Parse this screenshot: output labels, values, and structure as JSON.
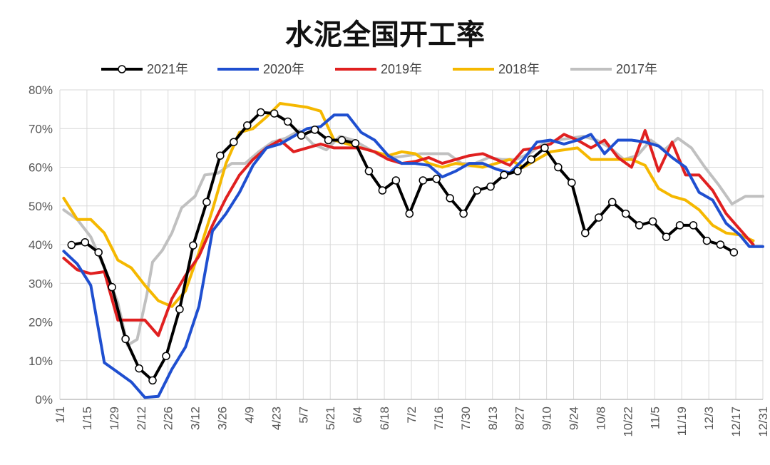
{
  "chart_data": {
    "type": "line",
    "title": "水泥全国开工率",
    "xlabel": "",
    "ylabel": "",
    "ylim": [
      0,
      80
    ],
    "y_ticks": [
      "0%",
      "10%",
      "20%",
      "30%",
      "40%",
      "50%",
      "60%",
      "70%",
      "80%"
    ],
    "x_day_range": [
      1,
      365
    ],
    "x_tick_labels": [
      "1/1",
      "1/15",
      "1/29",
      "2/12",
      "2/26",
      "3/12",
      "3/26",
      "4/9",
      "4/23",
      "5/7",
      "5/21",
      "6/4",
      "6/18",
      "7/2",
      "7/16",
      "7/30",
      "8/13",
      "8/27",
      "9/10",
      "9/24",
      "10/8",
      "10/22",
      "11/5",
      "11/19",
      "12/3",
      "12/17",
      "12/31"
    ],
    "x_tick_days": [
      1,
      15,
      29,
      43,
      57,
      71,
      85,
      99,
      113,
      127,
      141,
      155,
      169,
      183,
      197,
      211,
      225,
      239,
      253,
      267,
      281,
      295,
      309,
      323,
      337,
      351,
      365
    ],
    "grid": "both",
    "legend_position": "top",
    "series": [
      {
        "name": "2021年",
        "color": "#000000",
        "marker": "circle",
        "points": [
          [
            7,
            39.9
          ],
          [
            14,
            40.6
          ],
          [
            21,
            38.0
          ],
          [
            28,
            29.0
          ],
          [
            35,
            15.6
          ],
          [
            42,
            8.0
          ],
          [
            49,
            4.9
          ],
          [
            56,
            11.2
          ],
          [
            63,
            23.3
          ],
          [
            70,
            39.8
          ],
          [
            77,
            51.0
          ],
          [
            84,
            63.0
          ],
          [
            91,
            66.5
          ],
          [
            98,
            70.8
          ],
          [
            105,
            74.2
          ],
          [
            112,
            73.9
          ],
          [
            119,
            71.8
          ],
          [
            126,
            68.2
          ],
          [
            133,
            69.7
          ],
          [
            140,
            67.0
          ],
          [
            147,
            67.0
          ],
          [
            154,
            66.2
          ],
          [
            161,
            59.0
          ],
          [
            168,
            54.0
          ],
          [
            175,
            56.6
          ],
          [
            182,
            48.0
          ],
          [
            189,
            56.6
          ],
          [
            196,
            57.0
          ],
          [
            203,
            52.0
          ],
          [
            210,
            48.0
          ],
          [
            217,
            54.0
          ],
          [
            224,
            55.0
          ],
          [
            231,
            58.0
          ],
          [
            238,
            59.0
          ],
          [
            245,
            62.0
          ],
          [
            252,
            65.0
          ],
          [
            259,
            60.0
          ],
          [
            266,
            56.0
          ],
          [
            273,
            43.0
          ],
          [
            280,
            47.0
          ],
          [
            287,
            51.0
          ],
          [
            294,
            48.0
          ],
          [
            301,
            45.0
          ],
          [
            308,
            46.0
          ],
          [
            315,
            42.0
          ],
          [
            322,
            45.0
          ],
          [
            329,
            45.0
          ],
          [
            336,
            41.0
          ],
          [
            343,
            40.0
          ],
          [
            350,
            38.0
          ]
        ]
      },
      {
        "name": "2020年",
        "color": "#1f4fd0",
        "points": [
          [
            3,
            38.3
          ],
          [
            10,
            35.0
          ],
          [
            17,
            29.5
          ],
          [
            24,
            9.5
          ],
          [
            31,
            7.0
          ],
          [
            38,
            4.5
          ],
          [
            45,
            0.5
          ],
          [
            52,
            0.8
          ],
          [
            59,
            7.8
          ],
          [
            66,
            13.5
          ],
          [
            73,
            24.0
          ],
          [
            80,
            43.5
          ],
          [
            87,
            48.0
          ],
          [
            94,
            53.5
          ],
          [
            101,
            60.5
          ],
          [
            108,
            65.0
          ],
          [
            115,
            66.0
          ],
          [
            122,
            68.0
          ],
          [
            129,
            70.0
          ],
          [
            136,
            70.5
          ],
          [
            143,
            73.5
          ],
          [
            150,
            73.5
          ],
          [
            157,
            69.0
          ],
          [
            164,
            67.0
          ],
          [
            171,
            63.0
          ],
          [
            178,
            61.0
          ],
          [
            185,
            61.0
          ],
          [
            192,
            60.5
          ],
          [
            199,
            57.5
          ],
          [
            206,
            59.0
          ],
          [
            213,
            61.0
          ],
          [
            220,
            61.0
          ],
          [
            227,
            59.5
          ],
          [
            234,
            58.5
          ],
          [
            241,
            62.0
          ],
          [
            248,
            66.5
          ],
          [
            255,
            67.0
          ],
          [
            262,
            66.0
          ],
          [
            269,
            67.0
          ],
          [
            276,
            68.5
          ],
          [
            283,
            63.5
          ],
          [
            290,
            67.0
          ],
          [
            297,
            67.0
          ],
          [
            304,
            66.5
          ],
          [
            311,
            65.5
          ],
          [
            318,
            62.5
          ],
          [
            325,
            60.0
          ],
          [
            332,
            53.5
          ],
          [
            339,
            51.5
          ],
          [
            346,
            45.5
          ],
          [
            353,
            42.5
          ],
          [
            358,
            39.5
          ],
          [
            365,
            39.5
          ]
        ]
      },
      {
        "name": "2019年",
        "color": "#e02020",
        "points": [
          [
            3,
            36.5
          ],
          [
            10,
            33.5
          ],
          [
            17,
            32.5
          ],
          [
            24,
            33.0
          ],
          [
            31,
            20.5
          ],
          [
            38,
            20.5
          ],
          [
            45,
            20.5
          ],
          [
            52,
            16.5
          ],
          [
            59,
            26.0
          ],
          [
            66,
            32.0
          ],
          [
            73,
            37.0
          ],
          [
            80,
            45.0
          ],
          [
            87,
            52.0
          ],
          [
            94,
            58.0
          ],
          [
            101,
            62.0
          ],
          [
            108,
            65.0
          ],
          [
            115,
            67.0
          ],
          [
            122,
            64.0
          ],
          [
            129,
            65.0
          ],
          [
            136,
            66.0
          ],
          [
            143,
            65.0
          ],
          [
            150,
            65.0
          ],
          [
            157,
            65.0
          ],
          [
            164,
            64.0
          ],
          [
            171,
            62.0
          ],
          [
            178,
            61.0
          ],
          [
            185,
            61.5
          ],
          [
            192,
            62.5
          ],
          [
            199,
            61.0
          ],
          [
            206,
            62.0
          ],
          [
            213,
            63.0
          ],
          [
            220,
            63.5
          ],
          [
            227,
            62.0
          ],
          [
            234,
            60.5
          ],
          [
            241,
            64.5
          ],
          [
            248,
            65.0
          ],
          [
            255,
            66.0
          ],
          [
            262,
            68.5
          ],
          [
            269,
            67.0
          ],
          [
            276,
            65.0
          ],
          [
            283,
            67.0
          ],
          [
            290,
            62.5
          ],
          [
            297,
            60.0
          ],
          [
            304,
            69.5
          ],
          [
            311,
            59.0
          ],
          [
            318,
            66.5
          ],
          [
            325,
            58.0
          ],
          [
            332,
            58.0
          ],
          [
            339,
            54.0
          ],
          [
            346,
            48.0
          ],
          [
            353,
            44.0
          ],
          [
            360,
            40.0
          ]
        ]
      },
      {
        "name": "2018年",
        "color": "#f5b800",
        "points": [
          [
            3,
            52.0
          ],
          [
            10,
            46.5
          ],
          [
            17,
            46.5
          ],
          [
            24,
            43.0
          ],
          [
            31,
            36.0
          ],
          [
            38,
            34.0
          ],
          [
            45,
            29.5
          ],
          [
            52,
            25.5
          ],
          [
            59,
            24.0
          ],
          [
            66,
            28.0
          ],
          [
            73,
            38.0
          ],
          [
            80,
            49.0
          ],
          [
            87,
            61.0
          ],
          [
            94,
            69.0
          ],
          [
            101,
            70.0
          ],
          [
            108,
            73.0
          ],
          [
            115,
            76.5
          ],
          [
            122,
            76.0
          ],
          [
            129,
            75.5
          ],
          [
            136,
            74.5
          ],
          [
            143,
            67.0
          ],
          [
            150,
            66.0
          ],
          [
            157,
            65.0
          ],
          [
            164,
            64.0
          ],
          [
            171,
            63.0
          ],
          [
            178,
            64.0
          ],
          [
            185,
            63.5
          ],
          [
            192,
            61.0
          ],
          [
            199,
            60.0
          ],
          [
            206,
            61.0
          ],
          [
            213,
            60.5
          ],
          [
            220,
            60.0
          ],
          [
            227,
            61.0
          ],
          [
            234,
            62.0
          ],
          [
            241,
            60.0
          ],
          [
            248,
            62.0
          ],
          [
            255,
            64.0
          ],
          [
            262,
            64.5
          ],
          [
            269,
            65.0
          ],
          [
            276,
            62.0
          ],
          [
            283,
            62.0
          ],
          [
            290,
            62.0
          ],
          [
            297,
            62.0
          ],
          [
            304,
            60.5
          ],
          [
            311,
            54.5
          ],
          [
            318,
            52.5
          ],
          [
            325,
            51.5
          ],
          [
            332,
            49.0
          ],
          [
            339,
            45.0
          ],
          [
            346,
            43.0
          ],
          [
            353,
            42.5
          ],
          [
            360,
            41.0
          ]
        ]
      },
      {
        "name": "2017年",
        "color": "#c0c0c0",
        "points": [
          [
            3,
            49.0
          ],
          [
            10,
            46.5
          ],
          [
            17,
            42.0
          ],
          [
            24,
            34.0
          ],
          [
            31,
            25.0
          ],
          [
            36,
            14.0
          ],
          [
            41,
            15.5
          ],
          [
            46,
            27.0
          ],
          [
            49,
            35.5
          ],
          [
            54,
            38.5
          ],
          [
            59,
            43.0
          ],
          [
            64,
            49.5
          ],
          [
            71,
            52.5
          ],
          [
            76,
            58.0
          ],
          [
            83,
            58.5
          ],
          [
            90,
            61.0
          ],
          [
            97,
            61.0
          ],
          [
            104,
            64.0
          ],
          [
            111,
            66.5
          ],
          [
            118,
            67.5
          ],
          [
            125,
            69.5
          ],
          [
            132,
            66.0
          ],
          [
            139,
            64.5
          ],
          [
            146,
            68.0
          ],
          [
            153,
            67.0
          ],
          [
            160,
            65.0
          ],
          [
            167,
            63.0
          ],
          [
            174,
            62.5
          ],
          [
            181,
            63.0
          ],
          [
            188,
            63.5
          ],
          [
            195,
            63.5
          ],
          [
            202,
            63.5
          ],
          [
            209,
            61.0
          ],
          [
            216,
            61.0
          ],
          [
            223,
            62.5
          ],
          [
            230,
            62.0
          ],
          [
            237,
            62.0
          ],
          [
            244,
            63.5
          ],
          [
            251,
            66.0
          ],
          [
            258,
            67.0
          ],
          [
            265,
            67.5
          ],
          [
            272,
            68.0
          ],
          [
            279,
            67.0
          ],
          [
            286,
            65.0
          ],
          [
            293,
            62.0
          ],
          [
            300,
            63.0
          ],
          [
            307,
            67.0
          ],
          [
            314,
            64.5
          ],
          [
            321,
            67.5
          ],
          [
            328,
            65.0
          ],
          [
            335,
            60.0
          ],
          [
            342,
            55.5
          ],
          [
            349,
            50.5
          ],
          [
            356,
            52.5
          ],
          [
            365,
            52.5
          ]
        ]
      }
    ]
  }
}
